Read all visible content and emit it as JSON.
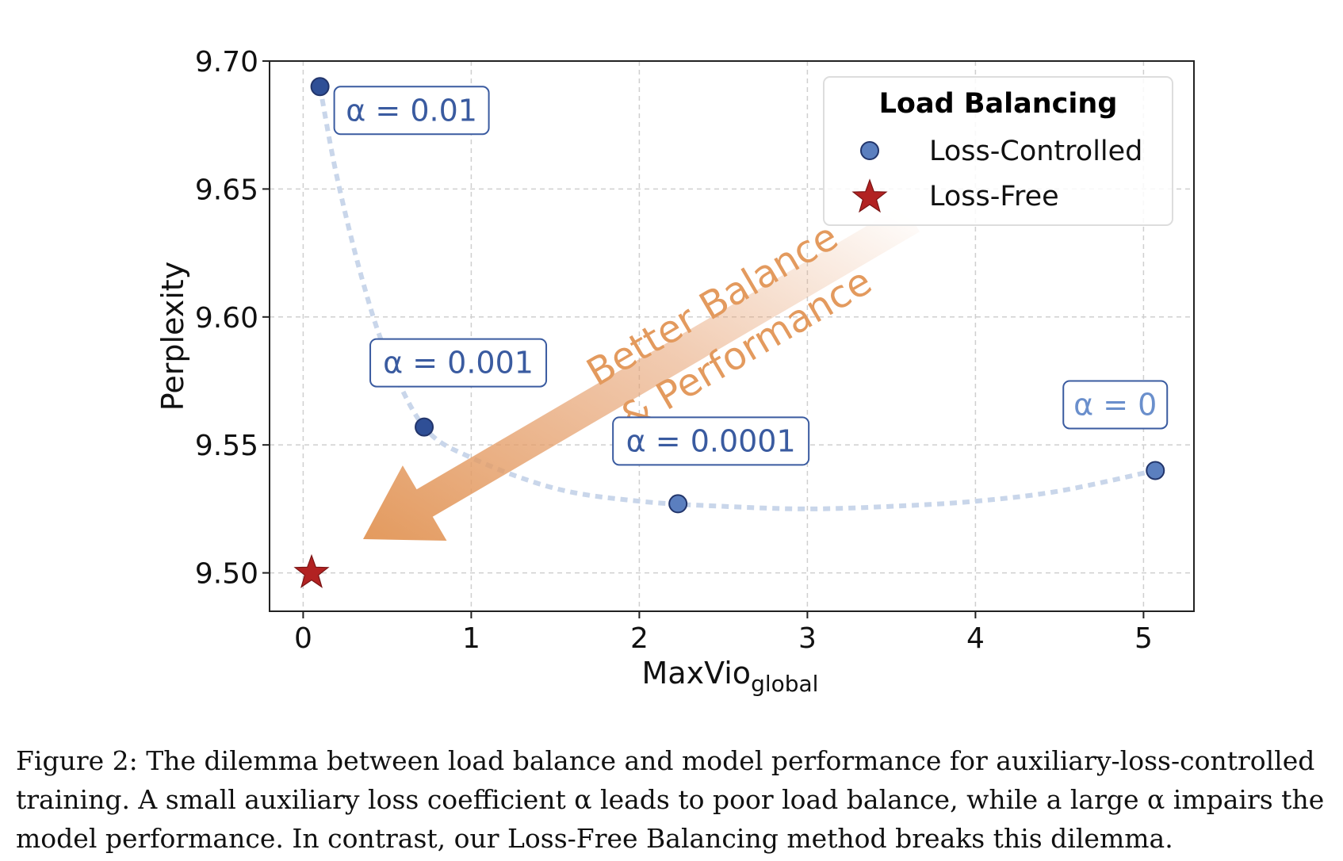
{
  "chart_data": {
    "type": "scatter",
    "xlabel": "MaxVio",
    "xlabel_sub": "global",
    "ylabel": "Perplexity",
    "xlim": [
      -0.2,
      5.3
    ],
    "ylim": [
      9.485,
      9.7
    ],
    "x_ticks": [
      0,
      1,
      2,
      3,
      4,
      5
    ],
    "y_ticks": [
      9.5,
      9.55,
      9.6,
      9.65,
      9.7
    ],
    "grid": true,
    "legend": {
      "title": "Load Balancing",
      "placement": "top-right",
      "entries": [
        "Loss-Controlled",
        "Loss-Free"
      ]
    },
    "series": [
      {
        "name": "Loss-Controlled",
        "marker": "circle",
        "color": "#5B7FBF",
        "points": [
          {
            "x": 0.1,
            "y": 9.69,
            "label": "α = 0.01"
          },
          {
            "x": 0.72,
            "y": 9.557,
            "label": "α = 0.001"
          },
          {
            "x": 2.23,
            "y": 9.527,
            "label": "α = 0.0001"
          },
          {
            "x": 5.07,
            "y": 9.54,
            "label": "α = 0"
          }
        ]
      },
      {
        "name": "Loss-Free",
        "marker": "star",
        "color": "#B22222",
        "points": [
          {
            "x": 0.05,
            "y": 9.5
          }
        ]
      }
    ],
    "trend_curve": [
      [
        0.1,
        9.69
      ],
      [
        0.2,
        9.655
      ],
      [
        0.35,
        9.615
      ],
      [
        0.5,
        9.585
      ],
      [
        0.72,
        9.557
      ],
      [
        1.0,
        9.545
      ],
      [
        1.5,
        9.533
      ],
      [
        2.0,
        9.528
      ],
      [
        2.5,
        9.526
      ],
      [
        3.0,
        9.525
      ],
      [
        3.5,
        9.526
      ],
      [
        4.0,
        9.528
      ],
      [
        4.5,
        9.532
      ],
      [
        5.07,
        9.54
      ]
    ],
    "annotation": {
      "line1": "Better Balance",
      "line2": "&  Performance"
    }
  },
  "caption": {
    "lines": [
      "Figure 2: The dilemma between load balance and model performance for auxiliary-loss-controlled",
      "training. A small auxiliary loss coefficient α leads to poor load balance, while a large α impairs the",
      "model performance. In contrast, our Loss-Free Balancing method breaks this dilemma."
    ]
  }
}
